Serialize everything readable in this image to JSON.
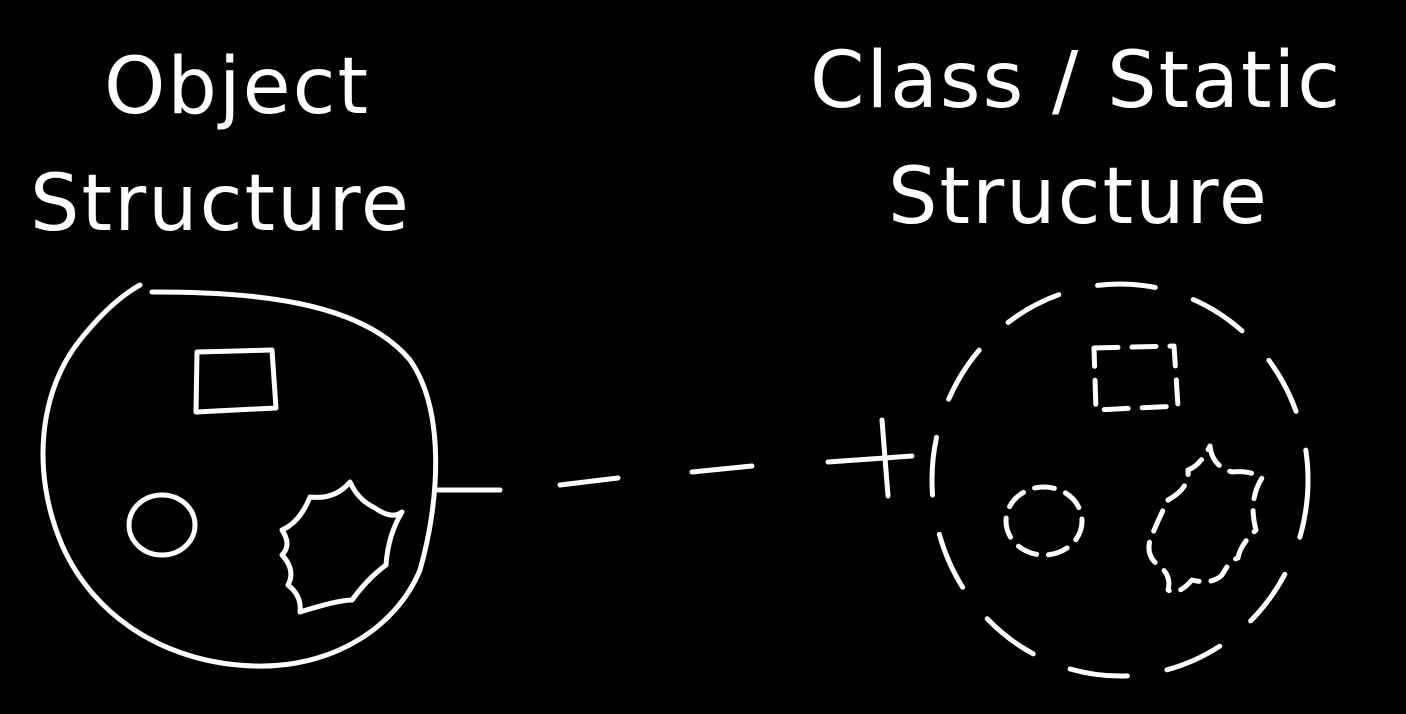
{
  "labels": {
    "object_line1": "Object",
    "object_line2": "Structure",
    "class_line1": "Class / Static",
    "class_line2": "Structure"
  },
  "colors": {
    "background": "#000000",
    "stroke": "#ffffff"
  }
}
